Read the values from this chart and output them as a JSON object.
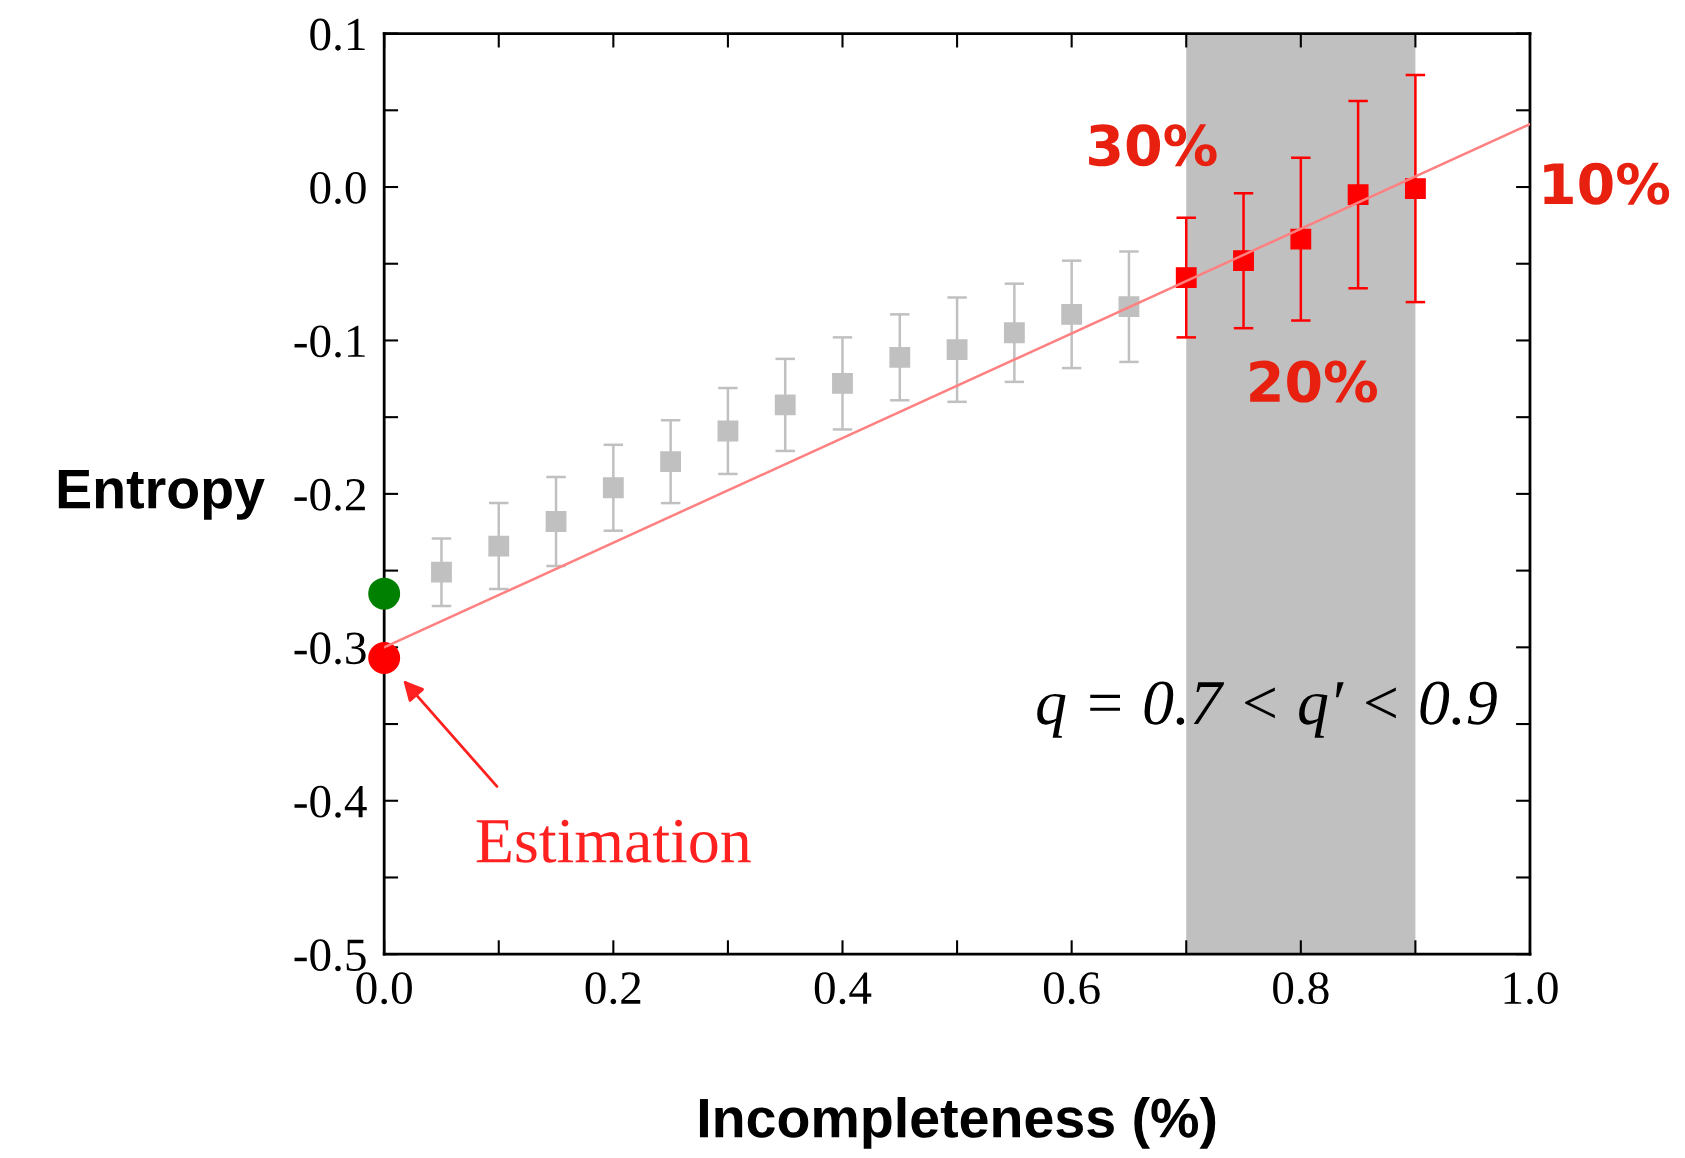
{
  "chart_data": {
    "type": "scatter",
    "xlabel": "Incompleteness (%)",
    "ylabel": "Entropy",
    "xlim": [
      0,
      1.0
    ],
    "ylim": [
      -0.5,
      0.1
    ],
    "xticks": [
      {
        "value": 0,
        "label": "0.0"
      },
      {
        "value": 0.1,
        "label": null
      },
      {
        "value": 0.2,
        "label": "0.2"
      },
      {
        "value": 0.3,
        "label": null
      },
      {
        "value": 0.4,
        "label": "0.4"
      },
      {
        "value": 0.5,
        "label": null
      },
      {
        "value": 0.6,
        "label": "0.6"
      },
      {
        "value": 0.7,
        "label": null
      },
      {
        "value": 0.8,
        "label": "0.8"
      },
      {
        "value": 0.9,
        "label": null
      },
      {
        "value": 1.0,
        "label": "1.0"
      }
    ],
    "yticks": [
      {
        "value": -0.5,
        "label": "-0.5"
      },
      {
        "value": -0.45,
        "label": null
      },
      {
        "value": -0.4,
        "label": "-0.4"
      },
      {
        "value": -0.35,
        "label": null
      },
      {
        "value": -0.3,
        "label": "-0.3"
      },
      {
        "value": -0.25,
        "label": null
      },
      {
        "value": -0.2,
        "label": "-0.2"
      },
      {
        "value": -0.15,
        "label": null
      },
      {
        "value": -0.1,
        "label": "-0.1"
      },
      {
        "value": -0.05,
        "label": null
      },
      {
        "value": 0,
        "label": "0.0"
      },
      {
        "value": 0.05,
        "label": null
      },
      {
        "value": 0.1,
        "label": "0.1"
      }
    ],
    "grid": false,
    "legend": false,
    "series": [
      {
        "marker": "square",
        "color": "#c0c0c0",
        "x": [
          0.05,
          0.1,
          0.15,
          0.2,
          0.25,
          0.3,
          0.35,
          0.4,
          0.45,
          0.5,
          0.55,
          0.6,
          0.65
        ],
        "values": [
          -0.251,
          -0.234,
          -0.218,
          -0.196,
          -0.179,
          -0.159,
          -0.142,
          -0.128,
          -0.111,
          -0.106,
          -0.095,
          -0.083,
          -0.078
        ],
        "errors": [
          0.022,
          0.028,
          0.029,
          0.028,
          0.027,
          0.028,
          0.03,
          0.03,
          0.028,
          0.034,
          0.032,
          0.035,
          0.036
        ]
      },
      {
        "type": "line",
        "marker": "none",
        "color": "#ff8080",
        "x": [
          0,
          1.0
        ],
        "values": [
          -0.3,
          0.041
        ]
      },
      {
        "marker": "square",
        "color": "#ff0000",
        "x": [
          0.7,
          0.75,
          0.8,
          0.85,
          0.9
        ],
        "values": [
          -0.059,
          -0.048,
          -0.034,
          -0.005,
          -0.001
        ],
        "errors": [
          0.039,
          0.044,
          0.053,
          0.061,
          0.074
        ]
      },
      {
        "marker": "circle",
        "color": "#008000",
        "x": [
          0
        ],
        "values": [
          -0.265
        ]
      },
      {
        "marker": "circle",
        "color": "#ff0000",
        "x": [
          0
        ],
        "values": [
          -0.307
        ]
      }
    ],
    "bands": [
      {
        "axis": "x",
        "from": 0.7,
        "to": 0.9,
        "color": "#c0c0c0"
      }
    ],
    "annotations": [
      {
        "text": "30%",
        "x": 0.7,
        "y": -0.059
      },
      {
        "text": "20%",
        "x": 0.8,
        "y": -0.034
      },
      {
        "text": "10%",
        "x": 0.9,
        "y": -0.001
      },
      "Estimation",
      "q = 0.7 < q′ < 0.9"
    ]
  }
}
